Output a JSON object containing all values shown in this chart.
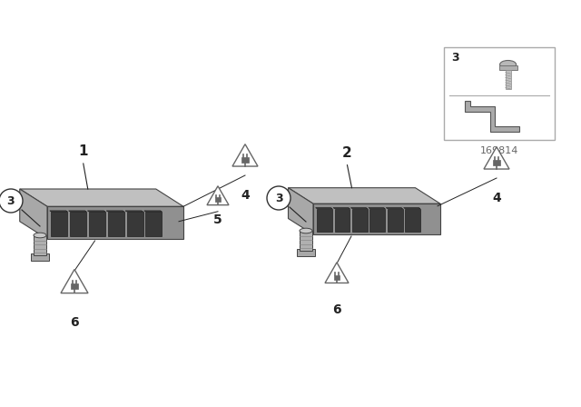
{
  "background_color": "#ffffff",
  "part_number": "169814",
  "top_face_color": "#c0c0c0",
  "front_face_color": "#a8a8a8",
  "right_face_color": "#909090",
  "connector_face_color": "#383838",
  "connector_top_color": "#505050",
  "mount_color": "#b0b0b0",
  "mount_dark": "#888888",
  "edge_color": "#444444",
  "label_color": "#222222",
  "triangle_fill": "#ffffff",
  "triangle_edge": "#666666",
  "plug_color": "#666666",
  "circle_fill": "#ffffff",
  "circle_edge": "#333333",
  "inset_edge": "#999999",
  "screw_color": "#aaaaaa",
  "part_num_color": "#666666"
}
